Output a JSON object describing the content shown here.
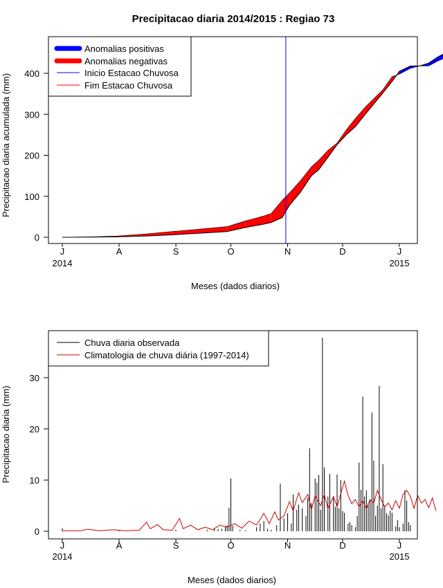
{
  "chart_data": [
    {
      "type": "area",
      "title": "Precipitacao diaria 2014/2015 : Regiao 73",
      "xlabel": "Meses (dados diarios)",
      "ylabel": "Precipitacao diaria acumulada (mm)",
      "ylim": [
        0,
        470
      ],
      "yticks": [
        "0",
        "100",
        "200",
        "300",
        "400"
      ],
      "month_ticks": [
        "J",
        "A",
        "S",
        "O",
        "N",
        "D",
        "J"
      ],
      "year_labels": [
        "2014",
        "2015"
      ],
      "legend": [
        {
          "label": "Anomalias positivas",
          "color": "#0000ff",
          "style": "thick"
        },
        {
          "label": "Anomalias negativas",
          "color": "#ff0000",
          "style": "thick"
        },
        {
          "label": "Inicio Estacao Chuvosa",
          "color": "#0000ff",
          "style": "thin"
        },
        {
          "label": "Fim Estacao Chuvosa",
          "color": "#ff0000",
          "style": "thin"
        }
      ],
      "rainy_season_start_day": 122,
      "x_days": [
        0,
        15,
        30,
        45,
        60,
        75,
        90,
        100,
        105,
        110,
        114,
        120,
        124,
        130,
        136,
        140,
        145,
        150,
        155,
        160,
        165,
        170,
        175,
        180,
        184,
        190,
        195,
        200,
        205,
        210,
        215,
        220,
        226
      ],
      "series": [
        {
          "name": "Observada acumulada",
          "values": [
            0,
            0.5,
            1,
            3,
            6,
            10,
            14,
            24,
            28,
            32,
            36,
            48,
            78,
            110,
            150,
            165,
            195,
            226,
            250,
            270,
            298,
            325,
            352,
            380,
            405,
            418,
            418,
            425,
            440,
            452,
            464,
            470,
            470
          ]
        },
        {
          "name": "Climatologia acumulada",
          "values": [
            0,
            1,
            3,
            8,
            14,
            20,
            26,
            40,
            46,
            52,
            58,
            90,
            108,
            138,
            172,
            188,
            212,
            230,
            262,
            290,
            316,
            338,
            360,
            392,
            398,
            412,
            418,
            418,
            430,
            440,
            452,
            463,
            470
          ]
        }
      ]
    },
    {
      "type": "bar",
      "title": "",
      "xlabel": "Meses (dados diarios)",
      "ylabel": "Precipitacao diaria (mm)",
      "ylim": [
        0,
        38
      ],
      "yticks": [
        "0",
        "10",
        "20",
        "30"
      ],
      "month_ticks": [
        "J",
        "A",
        "S",
        "O",
        "N",
        "D",
        "J"
      ],
      "year_labels": [
        "2014",
        "2015"
      ],
      "legend": [
        {
          "label": "Chuva diaria observada",
          "color": "#000000"
        },
        {
          "label": "Climatologia de chuva diária (1997-2014)",
          "color": "#cc0000"
        }
      ],
      "observed_bars": [
        {
          "day": 0,
          "value": 0.6
        },
        {
          "day": 31,
          "value": 0.2
        },
        {
          "day": 62,
          "value": 0.3
        },
        {
          "day": 79,
          "value": 0.3
        },
        {
          "day": 83,
          "value": 0.6
        },
        {
          "day": 85,
          "value": 0.4
        },
        {
          "day": 87,
          "value": 0.5
        },
        {
          "day": 89,
          "value": 1.0
        },
        {
          "day": 90,
          "value": 1.2
        },
        {
          "day": 91,
          "value": 4.6
        },
        {
          "day": 92,
          "value": 10.3
        },
        {
          "day": 93,
          "value": 1.1
        },
        {
          "day": 97,
          "value": 0.3
        },
        {
          "day": 100,
          "value": 0.2
        },
        {
          "day": 106,
          "value": 0.8
        },
        {
          "day": 108,
          "value": 1.5
        },
        {
          "day": 110,
          "value": 2.0
        },
        {
          "day": 112,
          "value": 0.5
        },
        {
          "day": 114,
          "value": 0.3
        },
        {
          "day": 117,
          "value": 1.2
        },
        {
          "day": 119,
          "value": 9.3
        },
        {
          "day": 121,
          "value": 2.5
        },
        {
          "day": 123,
          "value": 3.5
        },
        {
          "day": 125,
          "value": 1.5
        },
        {
          "day": 126,
          "value": 7.2
        },
        {
          "day": 128,
          "value": 4.2
        },
        {
          "day": 129,
          "value": 5.2
        },
        {
          "day": 131,
          "value": 4.5
        },
        {
          "day": 133,
          "value": 3.0
        },
        {
          "day": 134,
          "value": 6.5
        },
        {
          "day": 135,
          "value": 16.2
        },
        {
          "day": 136,
          "value": 5.5
        },
        {
          "day": 138,
          "value": 10.3
        },
        {
          "day": 139,
          "value": 9.5
        },
        {
          "day": 140,
          "value": 11.0
        },
        {
          "day": 141,
          "value": 4.2
        },
        {
          "day": 142,
          "value": 37.8
        },
        {
          "day": 143,
          "value": 12.5
        },
        {
          "day": 145,
          "value": 6.8
        },
        {
          "day": 146,
          "value": 11.2
        },
        {
          "day": 148,
          "value": 6.5
        },
        {
          "day": 149,
          "value": 4.8
        },
        {
          "day": 150,
          "value": 11.1
        },
        {
          "day": 151,
          "value": 4.5
        },
        {
          "day": 152,
          "value": 10.0
        },
        {
          "day": 153,
          "value": 4.0
        },
        {
          "day": 154,
          "value": 3.6
        },
        {
          "day": 156,
          "value": 1.5
        },
        {
          "day": 157,
          "value": 1.8
        },
        {
          "day": 158,
          "value": 1.2
        },
        {
          "day": 160,
          "value": 0.8
        },
        {
          "day": 161,
          "value": 3.0
        },
        {
          "day": 162,
          "value": 13.4
        },
        {
          "day": 163,
          "value": 8.1
        },
        {
          "day": 164,
          "value": 26.3
        },
        {
          "day": 165,
          "value": 6.8
        },
        {
          "day": 166,
          "value": 8.0
        },
        {
          "day": 167,
          "value": 5.5
        },
        {
          "day": 168,
          "value": 6.2
        },
        {
          "day": 169,
          "value": 23.2
        },
        {
          "day": 170,
          "value": 13.8
        },
        {
          "day": 171,
          "value": 3.0
        },
        {
          "day": 172,
          "value": 5.0
        },
        {
          "day": 173,
          "value": 28.4
        },
        {
          "day": 174,
          "value": 4.5
        },
        {
          "day": 175,
          "value": 13.1
        },
        {
          "day": 176,
          "value": 5.0
        },
        {
          "day": 177,
          "value": 3.5
        },
        {
          "day": 178,
          "value": 3.1
        },
        {
          "day": 179,
          "value": 4.0
        },
        {
          "day": 180,
          "value": 3.6
        },
        {
          "day": 182,
          "value": 1.0
        },
        {
          "day": 183,
          "value": 2.2
        },
        {
          "day": 184,
          "value": 0.8
        },
        {
          "day": 186,
          "value": 1.5
        },
        {
          "day": 187,
          "value": 8.0
        },
        {
          "day": 188,
          "value": 6.0
        },
        {
          "day": 189,
          "value": 1.8
        },
        {
          "day": 190,
          "value": 1.2
        }
      ],
      "climatology": [
        {
          "day": 0,
          "value": 0.1
        },
        {
          "day": 10,
          "value": 0.1
        },
        {
          "day": 14,
          "value": 0.4
        },
        {
          "day": 20,
          "value": 0.1
        },
        {
          "day": 28,
          "value": 0.3
        },
        {
          "day": 34,
          "value": 0.1
        },
        {
          "day": 42,
          "value": 0.2
        },
        {
          "day": 46,
          "value": 1.8
        },
        {
          "day": 48,
          "value": 0.5
        },
        {
          "day": 52,
          "value": 1.3
        },
        {
          "day": 55,
          "value": 0.3
        },
        {
          "day": 60,
          "value": 0.2
        },
        {
          "day": 64,
          "value": 2.5
        },
        {
          "day": 66,
          "value": 0.5
        },
        {
          "day": 70,
          "value": 1.2
        },
        {
          "day": 74,
          "value": 0.3
        },
        {
          "day": 78,
          "value": 0.8
        },
        {
          "day": 82,
          "value": 0.3
        },
        {
          "day": 86,
          "value": 1.2
        },
        {
          "day": 90,
          "value": 0.8
        },
        {
          "day": 94,
          "value": 1.5
        },
        {
          "day": 98,
          "value": 0.6
        },
        {
          "day": 102,
          "value": 2.0
        },
        {
          "day": 106,
          "value": 1.2
        },
        {
          "day": 110,
          "value": 3.5
        },
        {
          "day": 113,
          "value": 1.5
        },
        {
          "day": 116,
          "value": 3.8
        },
        {
          "day": 118,
          "value": 2.2
        },
        {
          "day": 121,
          "value": 3.0
        },
        {
          "day": 124,
          "value": 5.8
        },
        {
          "day": 126,
          "value": 4.0
        },
        {
          "day": 129,
          "value": 7.5
        },
        {
          "day": 131,
          "value": 5.6
        },
        {
          "day": 134,
          "value": 7.2
        },
        {
          "day": 136,
          "value": 4.2
        },
        {
          "day": 138,
          "value": 7.0
        },
        {
          "day": 141,
          "value": 5.0
        },
        {
          "day": 143,
          "value": 7.2
        },
        {
          "day": 145,
          "value": 4.4
        },
        {
          "day": 148,
          "value": 6.8
        },
        {
          "day": 150,
          "value": 4.8
        },
        {
          "day": 152,
          "value": 7.4
        },
        {
          "day": 154,
          "value": 9.8
        },
        {
          "day": 156,
          "value": 7.0
        },
        {
          "day": 158,
          "value": 5.4
        },
        {
          "day": 160,
          "value": 6.2
        },
        {
          "day": 162,
          "value": 4.8
        },
        {
          "day": 164,
          "value": 6.0
        },
        {
          "day": 166,
          "value": 4.4
        },
        {
          "day": 168,
          "value": 6.2
        },
        {
          "day": 170,
          "value": 5.5
        },
        {
          "day": 172,
          "value": 8.0
        },
        {
          "day": 174,
          "value": 6.2
        },
        {
          "day": 176,
          "value": 4.8
        },
        {
          "day": 178,
          "value": 5.5
        },
        {
          "day": 180,
          "value": 4.2
        },
        {
          "day": 182,
          "value": 6.0
        },
        {
          "day": 184,
          "value": 4.5
        },
        {
          "day": 186,
          "value": 7.2
        },
        {
          "day": 188,
          "value": 8.0
        },
        {
          "day": 190,
          "value": 6.8
        },
        {
          "day": 192,
          "value": 4.5
        },
        {
          "day": 194,
          "value": 7.0
        },
        {
          "day": 196,
          "value": 5.5
        },
        {
          "day": 198,
          "value": 6.2
        },
        {
          "day": 200,
          "value": 4.6
        },
        {
          "day": 202,
          "value": 6.5
        },
        {
          "day": 204,
          "value": 4.0
        }
      ]
    }
  ]
}
